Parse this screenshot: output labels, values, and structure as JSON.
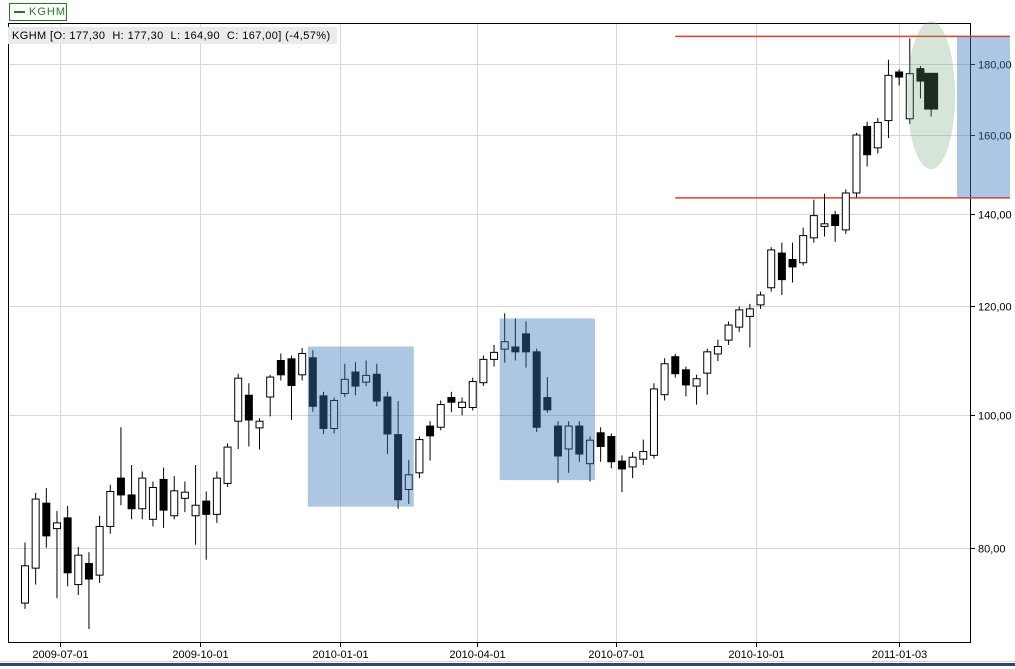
{
  "legend": {
    "symbol": "KGHM",
    "series_color": "#1e7d1e"
  },
  "info_bar": {
    "text": "KGHM [O: 177,30  H: 177,30  L: 164,90  C: 167,00] (-4,57%)"
  },
  "colors": {
    "candle_up_fill": "#ffffff",
    "candle_down_fill": "#000000",
    "candle_outline": "#000000",
    "grid": "#d7d7d7",
    "plot_border": "#000000",
    "axis_text": "#000000",
    "sr_line": "#ea3b28",
    "highlight_box_fill": "rgba(58,118,188,0.42)",
    "highlight_ellipse_fill": "rgba(110,160,120,0.28)",
    "divider_navy": "#33416f",
    "info_bar_bg": "#ebebeb"
  },
  "chart_data": {
    "type": "candlestick",
    "symbol": "KGHM",
    "timeframe": "weekly",
    "last_quote": {
      "open": "177,30",
      "high": "177,30",
      "low": "164,90",
      "close": "167,00",
      "change_pct": "-4,57%"
    },
    "y_axis": {
      "scale": "log",
      "side": "right",
      "tick_values": [
        180,
        160,
        140,
        120,
        100,
        80
      ],
      "tick_labels": [
        "180,00",
        "160,00",
        "140,00",
        "120,00",
        "100,00",
        "80,00"
      ]
    },
    "x_axis": {
      "first_week": "2009-06-08",
      "tick_labels": [
        "2009-07-01",
        "2009-10-01",
        "2010-01-01",
        "2010-04-01",
        "2010-07-01",
        "2010-10-01",
        "2011-01-03"
      ]
    },
    "levels": {
      "from_date": "2010-08-09",
      "resistance": 188.6,
      "support": 143.9
    },
    "right_band": {
      "price_top": 188.6,
      "price_bottom": 143.9
    },
    "highlight_boxes": [
      {
        "from": "2009-12-14",
        "to": "2010-02-15",
        "price_top": 112.2,
        "price_bottom": 85.8
      },
      {
        "from": "2010-04-19",
        "to": "2010-06-14",
        "price_top": 117.6,
        "price_bottom": 89.7
      }
    ],
    "highlight_ellipse": {
      "center_date": "2011-01-24",
      "half_width_weeks": 2.25,
      "price_top": 193.5,
      "price_bottom": 151.0
    },
    "candles": [
      [
        "2009-06-08",
        73.0,
        80.8,
        72.3,
        77.7
      ],
      [
        "2009-06-15",
        77.4,
        87.8,
        75.3,
        86.9
      ],
      [
        "2009-06-22",
        86.3,
        88.5,
        80.1,
        81.7
      ],
      [
        "2009-06-29",
        82.7,
        85.2,
        73.6,
        83.5
      ],
      [
        "2009-07-06",
        84.2,
        85.9,
        75.1,
        76.8
      ],
      [
        "2009-07-13",
        75.3,
        80.2,
        74.0,
        79.1
      ],
      [
        "2009-07-20",
        78.0,
        79.5,
        69.9,
        76.0
      ],
      [
        "2009-07-27",
        76.5,
        84.5,
        75.5,
        83.0
      ],
      [
        "2009-08-03",
        83.0,
        89.0,
        82.0,
        88.0
      ],
      [
        "2009-08-10",
        90.0,
        98.0,
        86.0,
        87.5
      ],
      [
        "2009-08-17",
        87.5,
        92.0,
        84.0,
        85.5
      ],
      [
        "2009-08-24",
        85.5,
        91.0,
        84.0,
        90.0
      ],
      [
        "2009-08-31",
        84.0,
        89.5,
        83.0,
        88.6
      ],
      [
        "2009-09-07",
        89.8,
        91.6,
        82.8,
        85.3
      ],
      [
        "2009-09-14",
        84.5,
        90.3,
        84.0,
        88.1
      ],
      [
        "2009-09-21",
        87.0,
        89.5,
        85.0,
        87.9
      ],
      [
        "2009-09-28",
        84.5,
        92.0,
        80.5,
        86.0
      ],
      [
        "2009-10-05",
        86.6,
        88.0,
        78.5,
        84.7
      ],
      [
        "2009-10-12",
        84.7,
        91.0,
        83.5,
        90.0
      ],
      [
        "2009-10-19",
        89.2,
        95.4,
        88.7,
        94.8
      ],
      [
        "2009-10-26",
        99.0,
        107.2,
        94.5,
        106.4
      ],
      [
        "2009-11-02",
        103.4,
        105.5,
        94.9,
        99.2
      ],
      [
        "2009-11-09",
        97.9,
        99.5,
        94.4,
        99.0
      ],
      [
        "2009-11-16",
        103.1,
        107.0,
        99.8,
        106.6
      ],
      [
        "2009-11-23",
        109.6,
        110.9,
        106.0,
        107.0
      ],
      [
        "2009-11-30",
        109.9,
        110.5,
        99.2,
        105.1
      ],
      [
        "2009-12-07",
        107.0,
        111.9,
        106.0,
        110.9
      ],
      [
        "2009-12-14",
        110.1,
        111.5,
        100.6,
        101.5
      ],
      [
        "2009-12-21",
        103.3,
        104.0,
        96.9,
        97.8
      ],
      [
        "2009-12-28",
        97.8,
        103.0,
        97.0,
        102.5
      ],
      [
        "2010-01-04",
        103.7,
        109.0,
        103.1,
        106.2
      ],
      [
        "2010-01-11",
        107.5,
        109.3,
        103.4,
        105.0
      ],
      [
        "2010-01-18",
        105.7,
        109.6,
        105.0,
        106.9
      ],
      [
        "2010-01-25",
        107.1,
        109.0,
        101.5,
        102.4
      ],
      [
        "2010-02-01",
        103.1,
        104.0,
        93.7,
        96.9
      ],
      [
        "2010-02-08",
        96.8,
        102.4,
        85.5,
        86.8
      ],
      [
        "2010-02-15",
        88.3,
        92.8,
        86.2,
        90.5
      ],
      [
        "2010-02-22",
        90.8,
        96.5,
        90.0,
        96.0
      ],
      [
        "2010-03-01",
        98.2,
        99.0,
        92.7,
        96.6
      ],
      [
        "2010-03-08",
        98.0,
        102.5,
        97.5,
        101.8
      ],
      [
        "2010-03-15",
        103.0,
        104.0,
        100.5,
        102.2
      ],
      [
        "2010-03-22",
        101.3,
        103.0,
        100.0,
        102.2
      ],
      [
        "2010-03-29",
        101.3,
        106.5,
        100.8,
        105.8
      ],
      [
        "2010-04-05",
        105.6,
        110.5,
        105.0,
        109.8
      ],
      [
        "2010-04-12",
        109.8,
        112.5,
        108.5,
        111.1
      ],
      [
        "2010-04-19",
        111.7,
        118.6,
        109.2,
        113.1
      ],
      [
        "2010-04-26",
        112.1,
        117.6,
        109.6,
        111.2
      ],
      [
        "2010-05-03",
        114.6,
        117.0,
        108.3,
        111.2
      ],
      [
        "2010-05-10",
        111.2,
        111.8,
        97.2,
        98.0
      ],
      [
        "2010-05-17",
        103.0,
        106.6,
        100.4,
        100.9
      ],
      [
        "2010-05-24",
        98.2,
        99.0,
        89.3,
        93.4
      ],
      [
        "2010-05-31",
        94.5,
        99.0,
        90.8,
        98.2
      ],
      [
        "2010-06-07",
        98.2,
        99.0,
        92.5,
        93.7
      ],
      [
        "2010-06-14",
        92.2,
        96.5,
        89.5,
        95.9
      ],
      [
        "2010-06-21",
        97.1,
        98.0,
        92.5,
        94.9
      ],
      [
        "2010-06-28",
        96.5,
        97.0,
        91.5,
        92.5
      ],
      [
        "2010-07-05",
        92.6,
        93.5,
        87.9,
        91.4
      ],
      [
        "2010-07-12",
        91.7,
        94.0,
        90.0,
        93.2
      ],
      [
        "2010-07-19",
        92.9,
        96.0,
        92.0,
        94.1
      ],
      [
        "2010-07-26",
        93.5,
        105.5,
        93.0,
        104.5
      ],
      [
        "2010-08-02",
        103.5,
        110.0,
        102.5,
        109.0
      ],
      [
        "2010-08-09",
        110.3,
        110.8,
        106.5,
        107.2
      ],
      [
        "2010-08-16",
        107.9,
        108.5,
        103.2,
        105.2
      ],
      [
        "2010-08-23",
        105.0,
        107.0,
        101.8,
        106.3
      ],
      [
        "2010-08-30",
        107.3,
        111.8,
        103.5,
        111.2
      ],
      [
        "2010-09-06",
        110.8,
        113.5,
        109.5,
        112.2
      ],
      [
        "2010-09-13",
        113.4,
        117.0,
        112.5,
        116.3
      ],
      [
        "2010-09-20",
        115.9,
        120.0,
        115.0,
        119.3
      ],
      [
        "2010-09-27",
        118.0,
        120.5,
        112.0,
        119.5
      ],
      [
        "2010-10-04",
        120.3,
        123.0,
        119.5,
        122.3
      ],
      [
        "2010-10-11",
        123.8,
        132.5,
        123.0,
        131.9
      ],
      [
        "2010-10-18",
        131.2,
        133.5,
        122.3,
        125.5
      ],
      [
        "2010-10-25",
        129.8,
        133.5,
        124.9,
        128.2
      ],
      [
        "2010-11-01",
        129.1,
        136.9,
        128.5,
        135.1
      ],
      [
        "2010-11-08",
        134.6,
        143.5,
        133.5,
        139.7
      ],
      [
        "2010-11-15",
        137.2,
        144.9,
        134.9,
        137.8
      ],
      [
        "2010-11-22",
        139.9,
        140.8,
        133.7,
        137.4
      ],
      [
        "2010-11-29",
        136.4,
        146.0,
        135.5,
        145.1
      ],
      [
        "2010-12-06",
        145.1,
        160.5,
        144.0,
        159.9
      ],
      [
        "2010-12-13",
        162.2,
        163.5,
        151.7,
        154.7
      ],
      [
        "2010-12-20",
        156.5,
        164.5,
        155.0,
        163.3
      ],
      [
        "2010-12-27",
        163.8,
        181.4,
        159.1,
        176.7
      ],
      [
        "2011-01-03",
        177.7,
        178.5,
        173.7,
        176.2
      ],
      [
        "2011-01-10",
        164.3,
        188.0,
        162.9,
        177.2
      ],
      [
        "2011-01-17",
        178.7,
        179.5,
        170.0,
        175.0
      ],
      [
        "2011-01-24",
        177.3,
        177.3,
        164.9,
        167.0
      ]
    ]
  }
}
